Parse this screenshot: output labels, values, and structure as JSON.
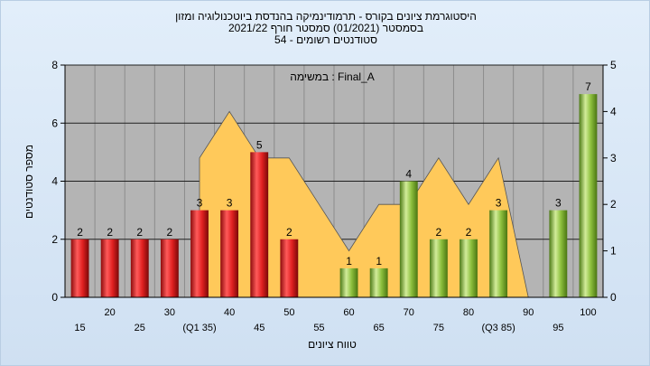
{
  "chart_data": {
    "type": "bar",
    "title_lines": [
      "היסטוגרמת ציונים בקורס - תרמודינמיקה בהנדסת ביוטכנולוגיה ומזון",
      "בסמסטר  (01/2021)  סמסטר חורף 2021/22",
      "סטודנטים רשומים - 54"
    ],
    "subtitle": "במשימה : Final_A",
    "ylabel": "מספר סטודנטים",
    "xlabel": "טווח ציונים",
    "ylim": [
      0,
      8
    ],
    "y2lim": [
      0,
      5
    ],
    "y_ticks": [
      "0",
      "2",
      "4",
      "6",
      "8"
    ],
    "y2_ticks": [
      "0",
      "1",
      "2",
      "3",
      "4",
      "5"
    ],
    "categories": [
      "15",
      "20",
      "25",
      "30",
      "35",
      "40",
      "45",
      "50",
      "55",
      "60",
      "65",
      "70",
      "75",
      "80",
      "85",
      "90",
      "95",
      "100"
    ],
    "category_labels": [
      "15",
      "20",
      "25",
      "30",
      "(Q1 35)",
      "40",
      "45",
      "50",
      "55",
      "60",
      "65",
      "70",
      "75",
      "80",
      "(Q3 85)",
      "90",
      "95",
      "100"
    ],
    "series": [
      {
        "values": [
          2,
          2,
          2,
          2,
          3,
          3,
          5,
          2,
          0,
          1,
          1,
          4,
          2,
          2,
          3,
          0,
          3,
          7
        ]
      }
    ],
    "bar_colors": [
      "red",
      "red",
      "red",
      "red",
      "red",
      "red",
      "red",
      "red",
      "none",
      "green",
      "green",
      "green",
      "green",
      "green",
      "green",
      "none",
      "green",
      "green"
    ],
    "area_series": [
      null,
      null,
      null,
      null,
      3,
      4,
      3,
      3,
      2,
      1,
      2,
      2,
      3,
      2,
      3,
      0,
      null,
      null
    ],
    "colors": {
      "red": "#e02020",
      "green": "#8cbf3c",
      "area": "#ffc95a",
      "plot_bg": "#b4b4b4",
      "frame_bg": "#d6e6f6"
    },
    "grid": true
  }
}
